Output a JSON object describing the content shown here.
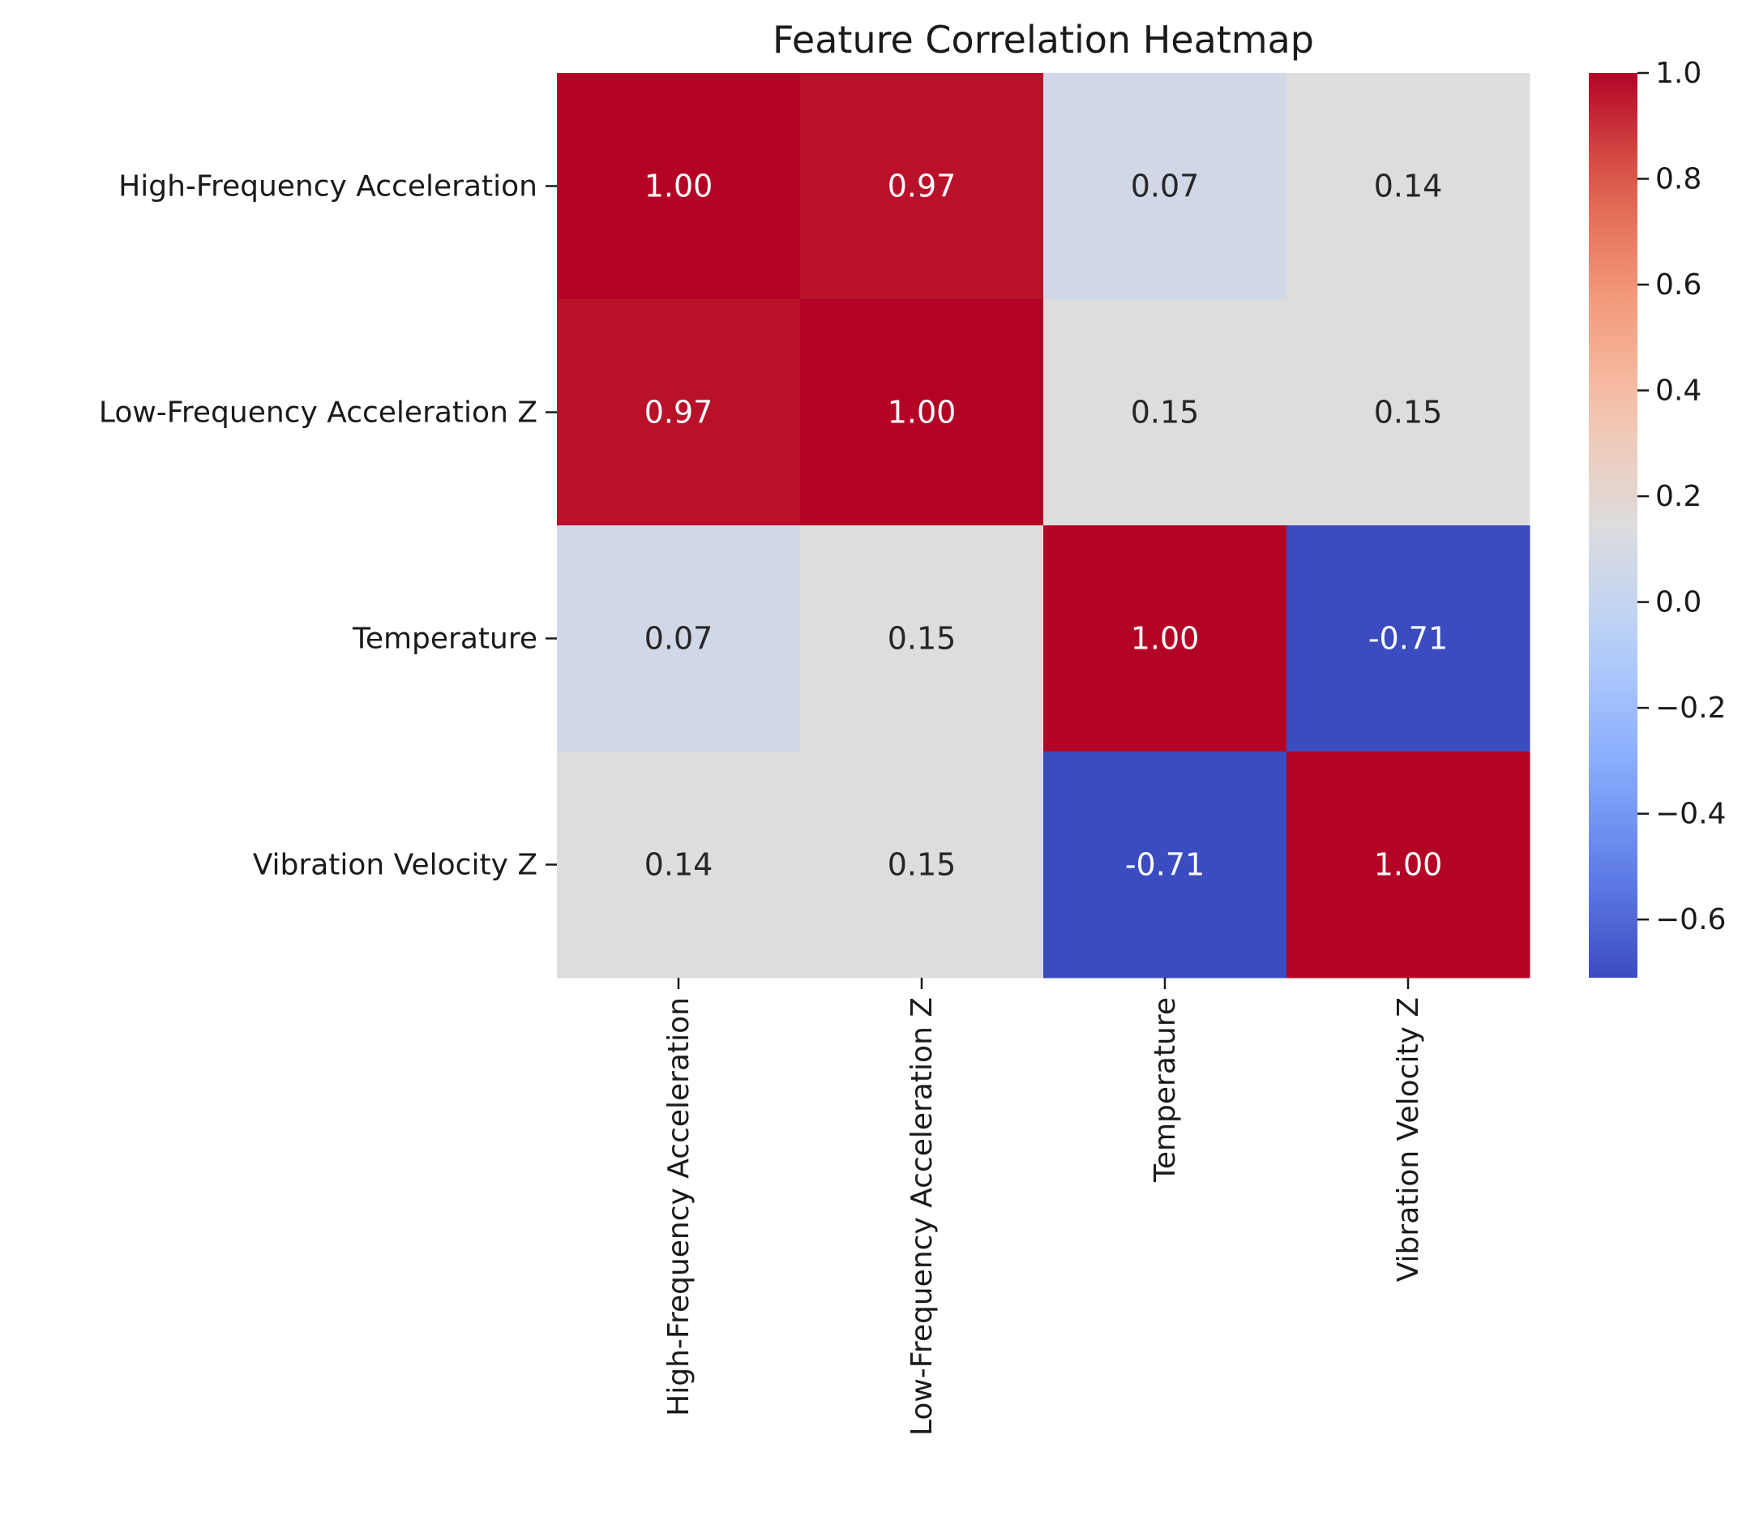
{
  "chart_data": {
    "type": "heatmap",
    "title": "Feature Correlation Heatmap",
    "xlabel": "",
    "ylabel": "",
    "rows": [
      "High-Frequency Acceleration",
      "Low-Frequency Acceleration Z",
      "Temperature",
      "Vibration Velocity Z"
    ],
    "columns": [
      "High-Frequency Acceleration",
      "Low-Frequency Acceleration Z",
      "Temperature",
      "Vibration Velocity Z"
    ],
    "values": [
      [
        1.0,
        0.97,
        0.07,
        0.14
      ],
      [
        0.97,
        1.0,
        0.15,
        0.15
      ],
      [
        0.07,
        0.15,
        1.0,
        -0.71
      ],
      [
        0.14,
        0.15,
        -0.71,
        1.0
      ]
    ],
    "annotations": [
      [
        "1.00",
        "0.97",
        "0.07",
        "0.14"
      ],
      [
        "0.97",
        "1.00",
        "0.15",
        "0.15"
      ],
      [
        "0.07",
        "0.15",
        "1.00",
        "-0.71"
      ],
      [
        "0.14",
        "0.15",
        "-0.71",
        "1.00"
      ]
    ],
    "colormap": "coolwarm",
    "colorbar": {
      "range": [
        -0.71,
        1.0
      ],
      "ticks": [
        1.0,
        0.8,
        0.6,
        0.4,
        0.2,
        0.0,
        -0.2,
        -0.4,
        -0.6
      ],
      "tick_labels": [
        "1.0",
        "0.8",
        "0.6",
        "0.4",
        "0.2",
        "0.0",
        "−0.2",
        "−0.4",
        "−0.6"
      ]
    },
    "grid": false,
    "legend": "colorbar-right"
  }
}
